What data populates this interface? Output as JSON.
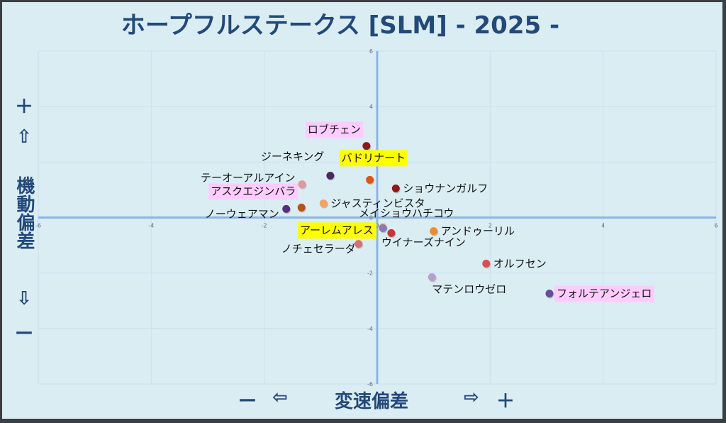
{
  "title": "ホープフルステークス [SLM]  - 2025 -",
  "y_axis_label": {
    "plus": "＋",
    "up_arrow": "⇧",
    "text": "機動偏差",
    "down_arrow": "⇩",
    "minus": "ー"
  },
  "x_axis_label": {
    "minus": "ー",
    "left_arrow": "⇦",
    "text": "変速偏差",
    "right_arrow": "⇨",
    "plus": "＋"
  },
  "colors": {
    "background": "#daedf3",
    "title": "#23497a",
    "axis_line": "#8fb4e3",
    "grid": "#c9e0ec",
    "highlight_pink": "#ffccff",
    "highlight_yellow": "#ffff00"
  },
  "chart_data": {
    "type": "scatter",
    "title": "ホープフルステークス [SLM]  - 2025 -",
    "xlabel": "変速偏差",
    "ylabel": "機動偏差",
    "xlim": [
      -6,
      6
    ],
    "ylim": [
      -6,
      6
    ],
    "xticks": [
      -6,
      -4,
      -2,
      0,
      2,
      4,
      6
    ],
    "yticks": [
      -6,
      -4,
      -2,
      0,
      2,
      4,
      6
    ],
    "grid": true,
    "points": [
      {
        "name": "ロブチェン",
        "x": -0.19,
        "y": 2.58,
        "color": "#8b1a1a",
        "highlight": "pink",
        "label_pos": "left-above"
      },
      {
        "name": "バドリナート",
        "x": -0.13,
        "y": 1.36,
        "color": "#d9580e",
        "highlight": "yellow",
        "label_pos": "right-above"
      },
      {
        "name": "ジーネキング",
        "x": -0.83,
        "y": 1.51,
        "color": "#4a2a5e",
        "highlight": null,
        "label_pos": "left-above"
      },
      {
        "name": "テーオーアルアイン",
        "x": -1.33,
        "y": 1.2,
        "color": "#e09a9a",
        "highlight": null,
        "label_pos": "left"
      },
      {
        "name": "ショウナンガルフ",
        "x": 0.33,
        "y": 1.05,
        "color": "#8b1a1a",
        "highlight": null,
        "label_pos": "right"
      },
      {
        "name": "ジャスティンビスタ",
        "x": -0.95,
        "y": 0.51,
        "color": "#f4a460",
        "highlight": null,
        "label_pos": "right"
      },
      {
        "name": "アスクエジンバラ",
        "x": -1.34,
        "y": 0.36,
        "color": "#c0500a",
        "highlight": "pink",
        "label_pos": "left-above"
      },
      {
        "name": "ノーウェアマン",
        "x": -1.61,
        "y": 0.31,
        "color": "#5a2d7a",
        "highlight": null,
        "label_pos": "left-below"
      },
      {
        "name": "メイショウハチコウ",
        "x": 0.1,
        "y": -0.33,
        "color": "#f5c08a",
        "highlight": null,
        "label_pos": "right-above"
      },
      {
        "name": "アーレムアレス",
        "x": 0.1,
        "y": -0.38,
        "color": "#8a78b8",
        "highlight": "yellow",
        "label_pos": "left"
      },
      {
        "name": "ウイナーズナイン",
        "x": 0.25,
        "y": -0.56,
        "color": "#cc3333",
        "highlight": null,
        "label_pos": "below"
      },
      {
        "name": "アンドゥーリル",
        "x": 1.0,
        "y": -0.49,
        "color": "#f08a30",
        "highlight": null,
        "label_pos": "right"
      },
      {
        "name": "ノチェセラーダ",
        "x": -0.33,
        "y": -0.95,
        "color": "#d97070",
        "highlight": null,
        "label_pos": "left-below"
      },
      {
        "name": "オルフセン",
        "x": 1.93,
        "y": -1.66,
        "color": "#d95050",
        "highlight": null,
        "label_pos": "right"
      },
      {
        "name": "マテンロウゼロ",
        "x": 0.97,
        "y": -2.15,
        "color": "#b8a0cc",
        "highlight": null,
        "label_pos": "below"
      },
      {
        "name": "フォルテアンジェロ",
        "x": 3.05,
        "y": -2.74,
        "color": "#6a4a9a",
        "highlight": "pink",
        "label_pos": "right"
      }
    ]
  }
}
